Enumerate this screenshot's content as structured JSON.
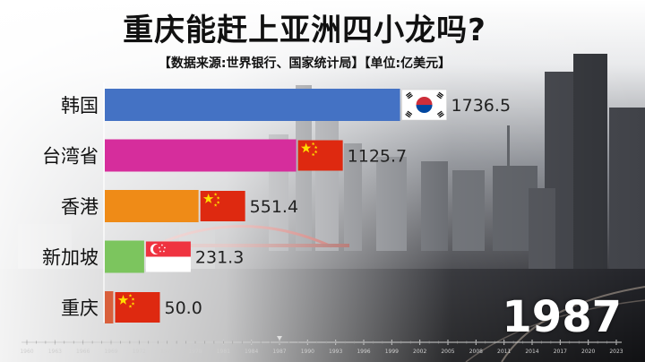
{
  "header": {
    "title": "重庆能赶上亚洲四小龙吗?",
    "subtitle": "【数据来源:世界银行、国家统计局】【单位:亿美元】"
  },
  "current_year": "1987",
  "chart_data": {
    "type": "bar",
    "orientation": "horizontal",
    "categories": [
      "韩国",
      "台湾省",
      "香港",
      "新加坡",
      "重庆"
    ],
    "values": [
      1736.5,
      1125.7,
      551.4,
      231.3,
      50.0
    ],
    "value_labels": [
      "1736.5",
      "1125.7",
      "551.4",
      "231.3",
      "50.0"
    ],
    "colors": [
      "#4472c4",
      "#d62d9c",
      "#ef8b17",
      "#7cc55e",
      "#d9603c"
    ],
    "flags": [
      "korea-flag-icon",
      "china-flag-icon",
      "china-flag-icon",
      "singapore-flag-icon",
      "china-flag-icon"
    ],
    "xlim": [
      0,
      1860
    ],
    "timeline_ticks": [
      "1960",
      "1963",
      "1966",
      "1969",
      "1972",
      "1975",
      "1978",
      "1981",
      "1984",
      "1987",
      "1990",
      "1993",
      "1996",
      "1999",
      "2002",
      "2005",
      "2008",
      "2011",
      "2014",
      "2017",
      "2020",
      "2023"
    ],
    "grid": false,
    "legend": "none"
  }
}
